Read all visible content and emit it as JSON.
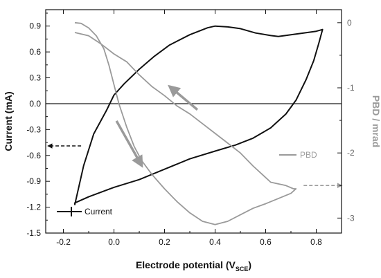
{
  "chart_data": {
    "type": "line",
    "xlabel": "Electrode potential (V",
    "xlabel_sub": "SCE",
    "xlabel_close": ")",
    "ylabel": "Current (mA)",
    "y2label": "PBD / mrad",
    "xlim": [
      -0.27,
      0.9
    ],
    "ylim": [
      -1.5,
      1.09
    ],
    "y2lim": [
      -3.23,
      0.2
    ],
    "x_ticks": [
      -0.2,
      0.0,
      0.2,
      0.4,
      0.6,
      0.8
    ],
    "x_tick_labels": [
      "-0.2",
      "0.0",
      "0.2",
      "0.4",
      "0.6",
      "0.8"
    ],
    "y_ticks": [
      0.9,
      0.6,
      0.3,
      0.0,
      -0.3,
      -0.6,
      -0.9,
      -1.2,
      -1.5
    ],
    "y_tick_labels": [
      "0.9",
      "0.6",
      "0.3",
      "0.0",
      "-0.3",
      "-0.6",
      "-0.9",
      "-1.2",
      "-1.5"
    ],
    "y2_ticks": [
      0,
      -1,
      -2,
      -3
    ],
    "y2_tick_labels": [
      "0",
      "-1",
      "-2",
      "-3"
    ],
    "zero_line": true,
    "grid": false,
    "series": [
      {
        "name": "Current",
        "axis": "left",
        "color": "#111111",
        "closed": true,
        "points": [
          [
            -0.155,
            -1.17
          ],
          [
            -0.12,
            -0.72
          ],
          [
            -0.08,
            -0.35
          ],
          [
            -0.03,
            -0.08
          ],
          [
            0.0,
            0.1
          ],
          [
            0.04,
            0.23
          ],
          [
            0.1,
            0.4
          ],
          [
            0.16,
            0.55
          ],
          [
            0.22,
            0.68
          ],
          [
            0.3,
            0.8
          ],
          [
            0.37,
            0.88
          ],
          [
            0.4,
            0.9
          ],
          [
            0.45,
            0.89
          ],
          [
            0.5,
            0.87
          ],
          [
            0.56,
            0.82
          ],
          [
            0.62,
            0.79
          ],
          [
            0.65,
            0.78
          ],
          [
            0.7,
            0.8
          ],
          [
            0.75,
            0.82
          ],
          [
            0.8,
            0.84
          ],
          [
            0.825,
            0.86
          ],
          [
            0.81,
            0.7
          ],
          [
            0.79,
            0.5
          ],
          [
            0.76,
            0.28
          ],
          [
            0.72,
            0.04
          ],
          [
            0.68,
            -0.12
          ],
          [
            0.62,
            -0.28
          ],
          [
            0.55,
            -0.4
          ],
          [
            0.48,
            -0.48
          ],
          [
            0.4,
            -0.55
          ],
          [
            0.3,
            -0.64
          ],
          [
            0.2,
            -0.76
          ],
          [
            0.1,
            -0.88
          ],
          [
            0.0,
            -0.97
          ],
          [
            -0.1,
            -1.08
          ],
          [
            -0.155,
            -1.15
          ]
        ]
      },
      {
        "name": "PBD",
        "axis": "right",
        "color": "#9a9a9a",
        "closed": false,
        "points": [
          [
            -0.155,
            0.0
          ],
          [
            -0.13,
            -0.01
          ],
          [
            -0.1,
            -0.08
          ],
          [
            -0.07,
            -0.2
          ],
          [
            -0.04,
            -0.4
          ],
          [
            -0.02,
            -0.65
          ],
          [
            0.0,
            -0.95
          ],
          [
            0.02,
            -1.25
          ],
          [
            0.05,
            -1.6
          ],
          [
            0.08,
            -1.9
          ],
          [
            0.11,
            -2.12
          ],
          [
            0.15,
            -2.33
          ],
          [
            0.2,
            -2.55
          ],
          [
            0.25,
            -2.75
          ],
          [
            0.3,
            -2.92
          ],
          [
            0.35,
            -3.05
          ],
          [
            0.4,
            -3.1
          ],
          [
            0.45,
            -3.05
          ],
          [
            0.5,
            -2.95
          ],
          [
            0.55,
            -2.85
          ],
          [
            0.6,
            -2.78
          ],
          [
            0.65,
            -2.7
          ],
          [
            0.7,
            -2.62
          ],
          [
            0.72,
            -2.55
          ],
          [
            0.71,
            -2.55
          ],
          [
            0.68,
            -2.5
          ],
          [
            0.62,
            -2.45
          ],
          [
            0.55,
            -2.2
          ],
          [
            0.5,
            -2.0
          ],
          [
            0.45,
            -1.85
          ],
          [
            0.4,
            -1.7
          ],
          [
            0.35,
            -1.55
          ],
          [
            0.3,
            -1.4
          ],
          [
            0.25,
            -1.28
          ],
          [
            0.2,
            -1.12
          ],
          [
            0.15,
            -0.98
          ],
          [
            0.1,
            -0.8
          ],
          [
            0.05,
            -0.6
          ],
          [
            0.0,
            -0.48
          ],
          [
            -0.05,
            -0.33
          ],
          [
            -0.1,
            -0.2
          ],
          [
            -0.155,
            -0.15
          ]
        ]
      }
    ],
    "legend": [
      {
        "label": "PBD",
        "color": "#9a9a9a",
        "placement": "right-middle"
      },
      {
        "label": "Current",
        "color": "#111111",
        "placement": "bottom-left"
      }
    ],
    "annotations": [
      {
        "kind": "arrow",
        "color": "#9a9a9a",
        "from": [
          0.33,
          -0.07
        ],
        "to": [
          0.22,
          0.2
        ],
        "axis": "left"
      },
      {
        "kind": "arrow",
        "color": "#9a9a9a",
        "from": [
          0.01,
          -0.2
        ],
        "to": [
          0.11,
          -0.72
        ],
        "axis": "left"
      },
      {
        "kind": "dashed-arrow",
        "color": "#111111",
        "from": [
          -0.13,
          -0.49
        ],
        "to": [
          -0.26,
          -0.49
        ],
        "axis": "left"
      },
      {
        "kind": "dashed-arrow",
        "color": "#9a9a9a",
        "from": [
          0.75,
          -2.5
        ],
        "to": [
          0.9,
          -2.5
        ],
        "axis": "right"
      }
    ]
  }
}
